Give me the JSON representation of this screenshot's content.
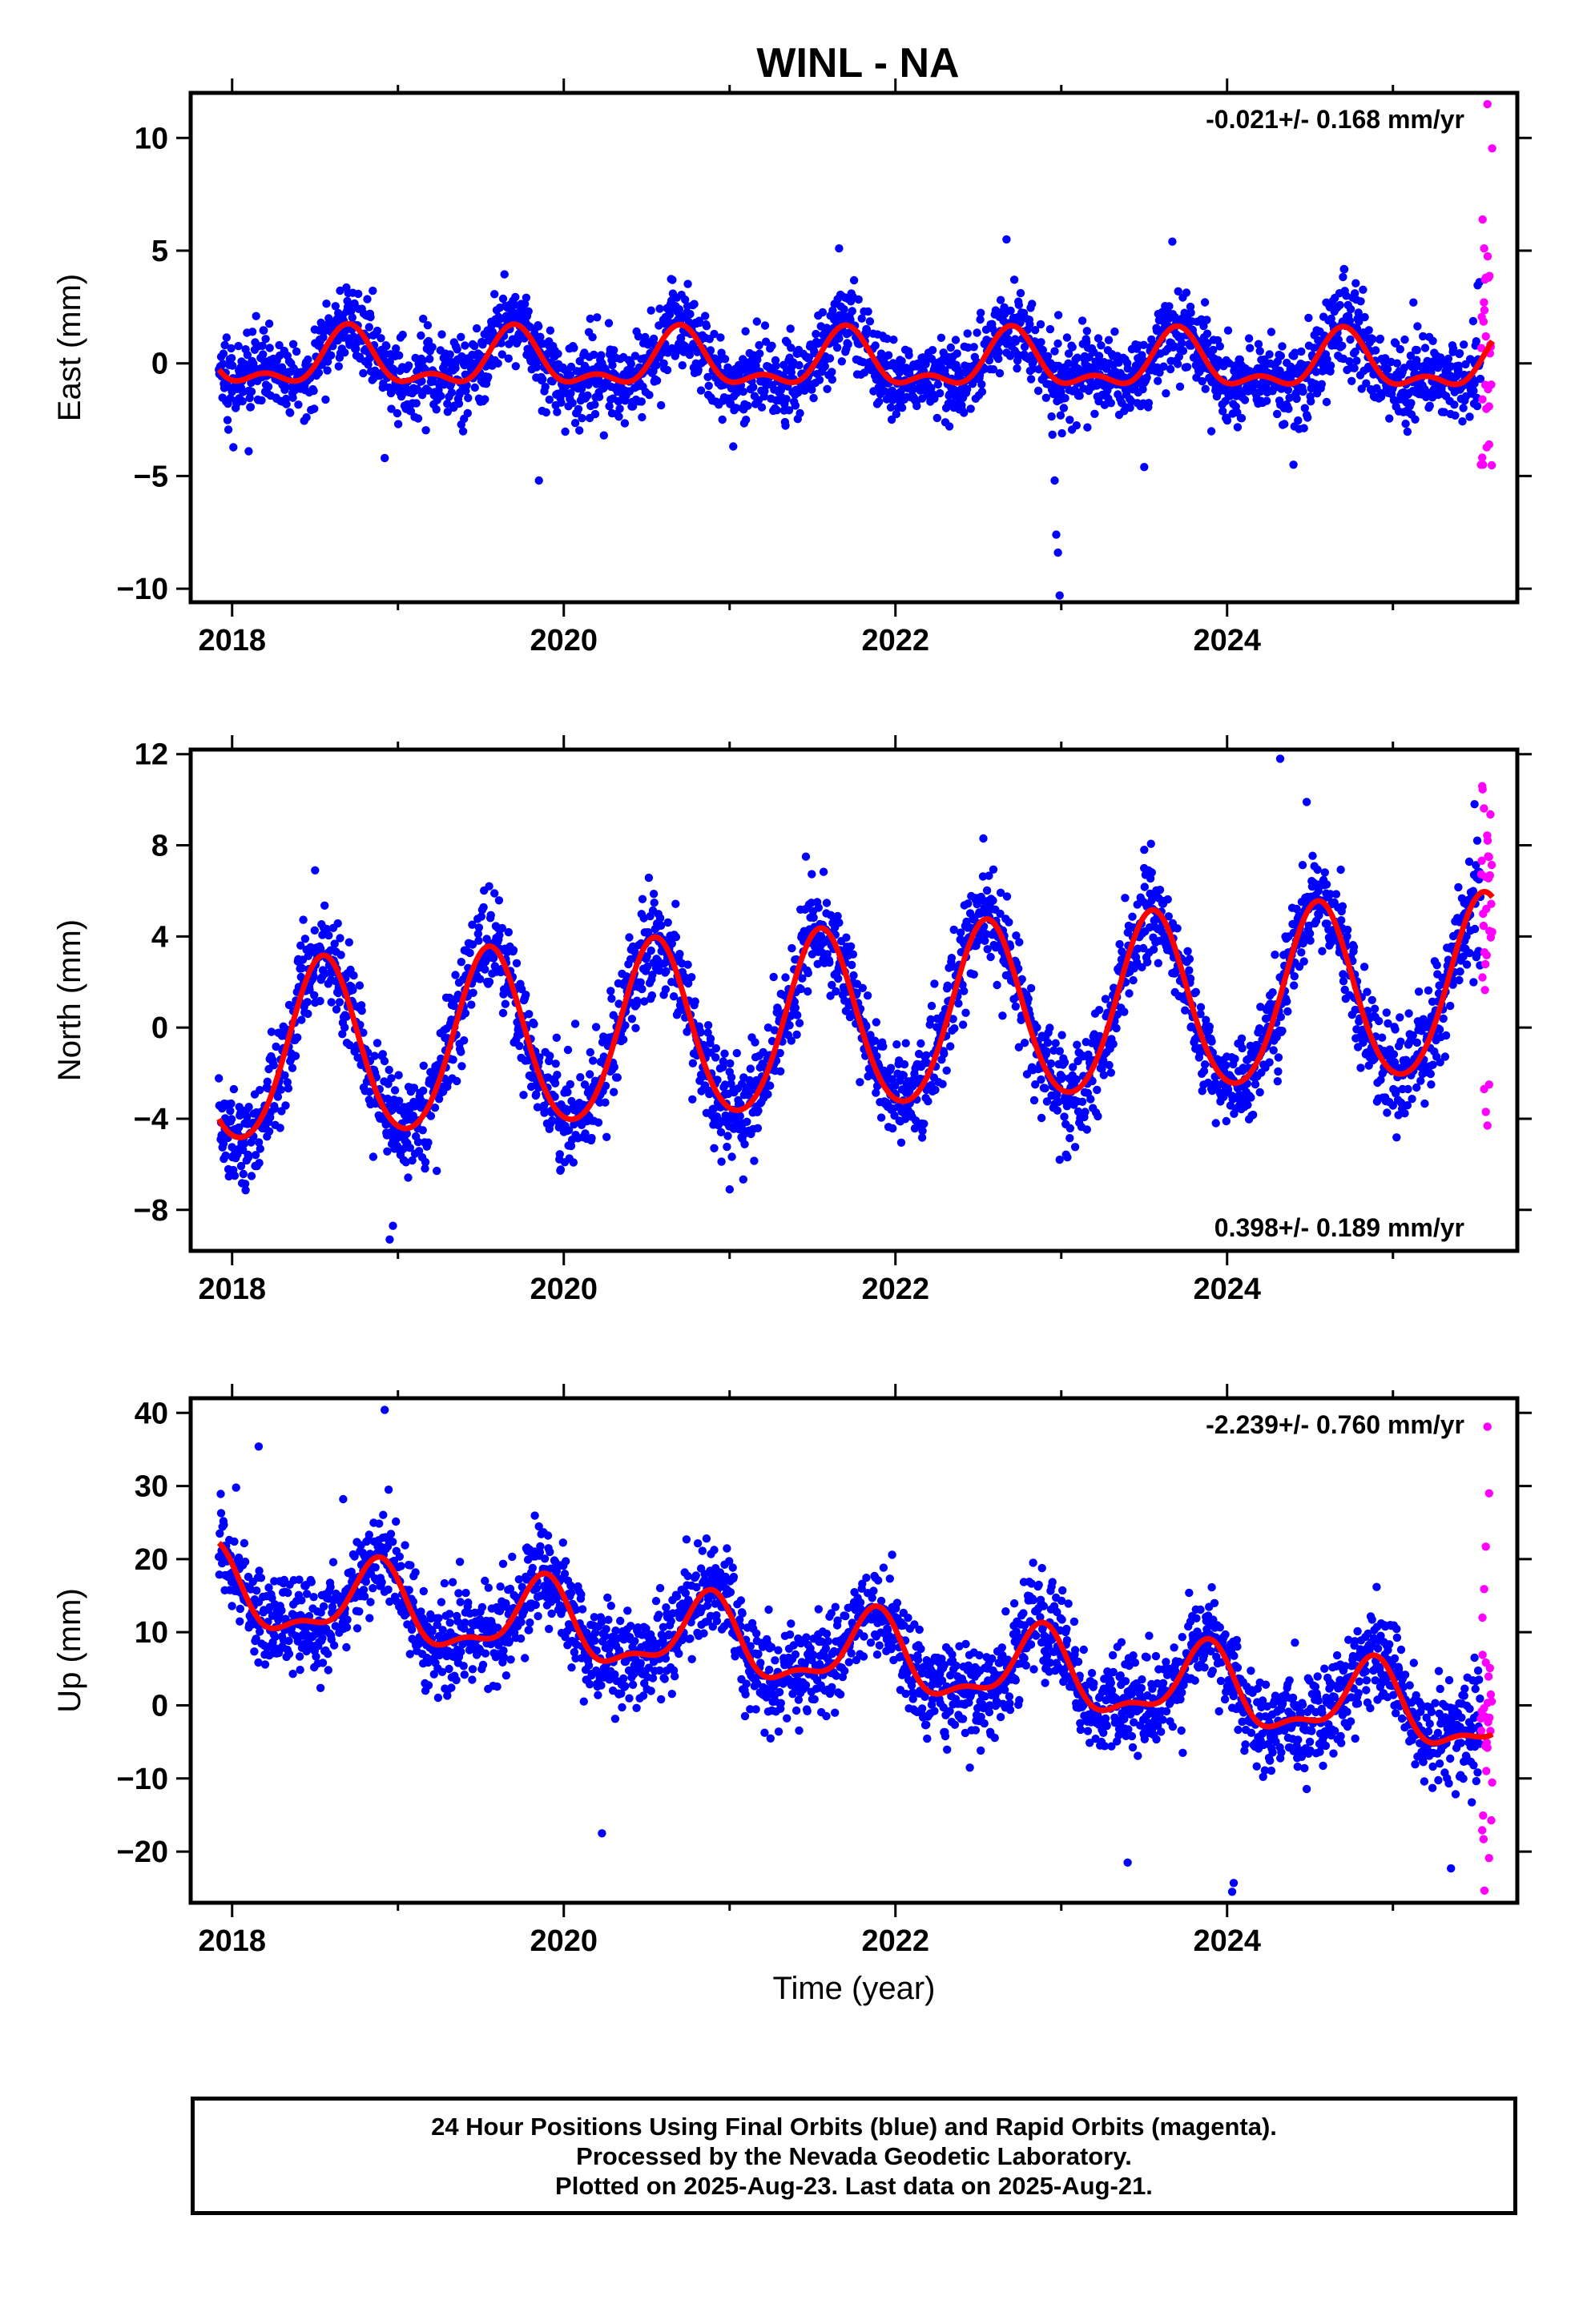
{
  "title": "WINL - NA",
  "xlabel": "Time (year)",
  "footer": [
    "24 Hour Positions Using Final Orbits (blue) and Rapid Orbits (magenta).",
    "Processed by the Nevada Geodetic Laboratory.",
    "Plotted on 2025-Aug-23. Last data on 2025-Aug-21."
  ],
  "colors": {
    "final_orbits": "#0000ff",
    "rapid_orbits": "#ff00ff",
    "model_fit": "#ff0000"
  },
  "chart_data": [
    {
      "type": "scatter",
      "ylabel": "East (mm)",
      "rate_label": "-0.021+/- 0.168 mm/yr",
      "rate_position": "top-right",
      "xlim": [
        2017.75,
        2025.75
      ],
      "ylim": [
        -10.6,
        12
      ],
      "x_ticks": [
        2018,
        2020,
        2022,
        2024
      ],
      "y_ticks": [
        -10,
        -5,
        0,
        5,
        10
      ],
      "fit": {
        "color": "#ff0000",
        "offset": 0,
        "trend_per_year": -0.021,
        "annual_amp": 1.1,
        "annual_peak": 0.7,
        "semiannual_amp": 0.6,
        "semiannual_peak": 0.7
      },
      "scatter": {
        "final_until": 2025.47,
        "spread": 0.9,
        "rapid_spread": 2.5
      },
      "outliers": [
        {
          "x": 2018.1,
          "y": -3.9
        },
        {
          "x": 2019.85,
          "y": -5.2
        },
        {
          "x": 2018.92,
          "y": -4.2
        },
        {
          "x": 2021.66,
          "y": 5.1
        },
        {
          "x": 2022.67,
          "y": 5.5
        },
        {
          "x": 2023.67,
          "y": 5.4
        },
        {
          "x": 2022.96,
          "y": -5.2
        },
        {
          "x": 2022.97,
          "y": -7.6
        },
        {
          "x": 2022.98,
          "y": -8.4
        },
        {
          "x": 2022.99,
          "y": -10.3
        },
        {
          "x": 2024.4,
          "y": -4.5
        },
        {
          "x": 2023.5,
          "y": -4.6
        }
      ],
      "rapid_outliers": [
        {
          "x": 2025.57,
          "y": 11.5
        },
        {
          "x": 2025.55,
          "y": 5.1
        },
        {
          "x": 2025.56,
          "y": 3.8
        },
        {
          "x": 2025.58,
          "y": -3.6
        },
        {
          "x": 2025.54,
          "y": -1.6
        }
      ]
    },
    {
      "type": "scatter",
      "ylabel": "North (mm)",
      "rate_label": "0.398+/- 0.189 mm/yr",
      "rate_position": "bottom-right",
      "xlim": [
        2017.75,
        2025.75
      ],
      "ylim": [
        -9.8,
        12.2
      ],
      "x_ticks": [
        2018,
        2020,
        2022,
        2024
      ],
      "y_ticks": [
        -8,
        -4,
        0,
        4,
        8,
        12
      ],
      "fit": {
        "color": "#ff0000",
        "offset": 0.1,
        "trend_per_year": 0.398,
        "annual_amp": 3.9,
        "annual_peak": 0.55,
        "semiannual_amp": 0.35,
        "semiannual_peak": 0.55
      },
      "scatter": {
        "final_until": 2025.47,
        "spread": 1.1,
        "rapid_spread": 2.8
      },
      "outliers": [
        {
          "x": 2018.95,
          "y": -9.3
        },
        {
          "x": 2018.97,
          "y": -8.7
        },
        {
          "x": 2018.5,
          "y": 6.9
        },
        {
          "x": 2019.55,
          "y": 6.2
        },
        {
          "x": 2021.46,
          "y": 7.5
        },
        {
          "x": 2022.53,
          "y": 8.3
        },
        {
          "x": 2023.5,
          "y": 7.8
        },
        {
          "x": 2024.32,
          "y": 11.8
        },
        {
          "x": 2024.48,
          "y": 9.9
        },
        {
          "x": 2022.99,
          "y": -5.8
        },
        {
          "x": 2021.0,
          "y": -7.1
        }
      ],
      "rapid_outliers": [
        {
          "x": 2025.57,
          "y": -4.3
        },
        {
          "x": 2025.56,
          "y": -3.7
        },
        {
          "x": 2025.55,
          "y": -2.7
        },
        {
          "x": 2025.58,
          "y": -2.5
        },
        {
          "x": 2025.54,
          "y": 2.2
        }
      ]
    },
    {
      "type": "scatter",
      "ylabel": "Up (mm)",
      "rate_label": "-2.239+/- 0.760 mm/yr",
      "rate_position": "top-right",
      "xlim": [
        2017.75,
        2025.75
      ],
      "ylim": [
        -27,
        42
      ],
      "x_ticks": [
        2018,
        2020,
        2022,
        2024
      ],
      "y_ticks": [
        -20,
        -10,
        0,
        10,
        20,
        30,
        40
      ],
      "fit": {
        "color": "#ff0000",
        "offset": 7.5,
        "trend_per_year": -2.239,
        "annual_amp": 5.0,
        "annual_peak": 0.87,
        "semiannual_amp": 2.0,
        "semiannual_peak": 0.4
      },
      "scatter": {
        "final_until": 2025.47,
        "spread": 3.3,
        "rapid_spread": 9
      },
      "outliers": [
        {
          "x": 2018.16,
          "y": 35.4
        },
        {
          "x": 2018.92,
          "y": 40.4
        },
        {
          "x": 2018.67,
          "y": 28.2
        },
        {
          "x": 2017.95,
          "y": 24.7
        },
        {
          "x": 2021.98,
          "y": 20.6
        },
        {
          "x": 2024.03,
          "y": -25.5
        },
        {
          "x": 2024.04,
          "y": -24.3
        },
        {
          "x": 2022.83,
          "y": 19.5
        },
        {
          "x": 2020.23,
          "y": -17.5
        },
        {
          "x": 2025.35,
          "y": -22.3
        },
        {
          "x": 2023.4,
          "y": -21.5
        }
      ],
      "rapid_outliers": [
        {
          "x": 2025.57,
          "y": 38.1
        },
        {
          "x": 2025.58,
          "y": 29.0
        },
        {
          "x": 2025.56,
          "y": 21.7
        },
        {
          "x": 2025.55,
          "y": 15.9
        },
        {
          "x": 2025.54,
          "y": 12.0
        },
        {
          "x": 2025.57,
          "y": -5.8
        }
      ]
    }
  ]
}
